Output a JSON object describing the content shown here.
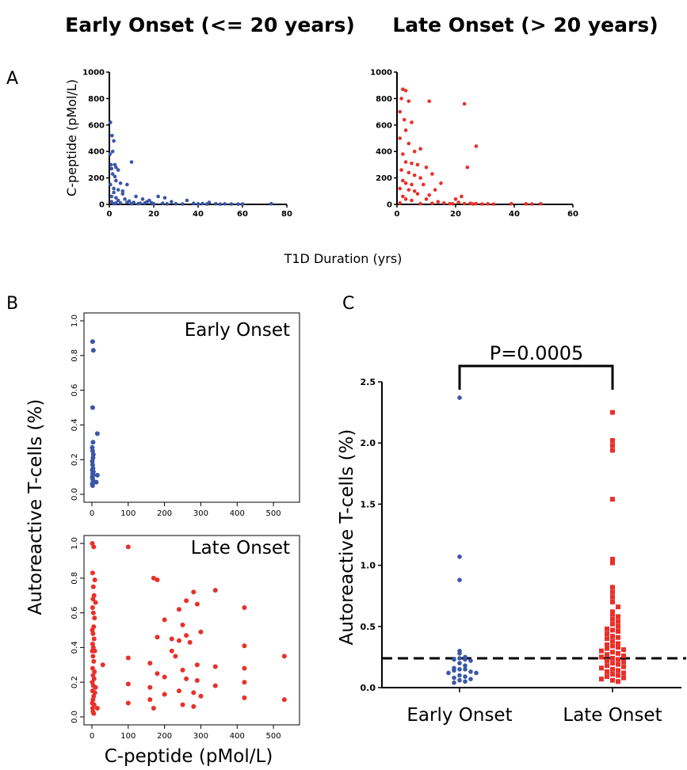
{
  "headers": {
    "early": "Early Onset (<= 20 years)",
    "late": "Late Onset (> 20 years)"
  },
  "panel_labels": {
    "a": "A",
    "b": "B",
    "c": "C"
  },
  "colors": {
    "early": "#3a57a7",
    "late": "#e8302a"
  },
  "chart_data": [
    {
      "id": "A-early",
      "type": "scatter",
      "ylabel": "C-peptide (pMol/L)",
      "xlabel": "T1D Duration (yrs)",
      "xlim": [
        0,
        80
      ],
      "ylim": [
        0,
        1000
      ],
      "xticks": [
        0,
        20,
        40,
        60,
        80
      ],
      "yticks": [
        0,
        200,
        400,
        600,
        800,
        1000
      ],
      "xtick_labels": [
        "0",
        "20",
        "40",
        "60",
        "80"
      ],
      "ytick_labels": [
        "0",
        "200",
        "400",
        "600",
        "800",
        "1000"
      ],
      "points": [
        [
          0.5,
          620
        ],
        [
          1.2,
          520
        ],
        [
          2,
          480
        ],
        [
          1.5,
          400
        ],
        [
          0.3,
          380
        ],
        [
          0.8,
          300
        ],
        [
          2.5,
          300
        ],
        [
          3,
          280
        ],
        [
          1,
          270
        ],
        [
          4,
          260
        ],
        [
          10,
          320
        ],
        [
          1.5,
          230
        ],
        [
          2.5,
          210
        ],
        [
          3,
          180
        ],
        [
          5,
          160
        ],
        [
          0.5,
          150
        ],
        [
          8,
          150
        ],
        [
          2,
          120
        ],
        [
          4,
          110
        ],
        [
          6,
          80
        ],
        [
          1,
          60
        ],
        [
          3,
          50
        ],
        [
          12,
          60
        ],
        [
          15,
          40
        ],
        [
          25,
          50
        ],
        [
          18,
          30
        ],
        [
          22,
          60
        ],
        [
          35,
          30
        ],
        [
          28,
          20
        ],
        [
          45,
          15
        ],
        [
          5,
          10
        ],
        [
          8,
          15
        ],
        [
          10,
          5
        ],
        [
          14,
          8
        ],
        [
          16,
          10
        ],
        [
          19,
          12
        ],
        [
          20,
          5
        ],
        [
          24,
          8
        ],
        [
          26,
          4
        ],
        [
          30,
          5
        ],
        [
          33,
          3
        ],
        [
          38,
          8
        ],
        [
          40,
          4
        ],
        [
          42,
          6
        ],
        [
          44,
          3
        ],
        [
          48,
          5
        ],
        [
          50,
          2
        ],
        [
          52,
          4
        ],
        [
          55,
          3
        ],
        [
          58,
          2
        ],
        [
          60,
          3
        ],
        [
          73,
          5
        ],
        [
          2,
          90
        ],
        [
          6,
          100
        ],
        [
          7,
          40
        ],
        [
          1,
          20
        ],
        [
          2,
          5
        ],
        [
          3,
          10
        ],
        [
          4,
          30
        ],
        [
          9,
          25
        ],
        [
          11,
          15
        ],
        [
          13,
          5
        ],
        [
          17,
          20
        ]
      ]
    },
    {
      "id": "A-late",
      "type": "scatter",
      "xlim": [
        0,
        60
      ],
      "ylim": [
        0,
        1000
      ],
      "xticks": [
        0,
        20,
        40,
        60
      ],
      "yticks": [
        0,
        200,
        400,
        600,
        800,
        1000
      ],
      "xtick_labels": [
        "0",
        "20",
        "40",
        "60"
      ],
      "ytick_labels": [
        "0",
        "200",
        "400",
        "600",
        "800",
        "1000"
      ],
      "points": [
        [
          2,
          870
        ],
        [
          3,
          860
        ],
        [
          1.5,
          800
        ],
        [
          4,
          780
        ],
        [
          11,
          780
        ],
        [
          23,
          760
        ],
        [
          1,
          700
        ],
        [
          2.5,
          640
        ],
        [
          5,
          620
        ],
        [
          3,
          560
        ],
        [
          1,
          500
        ],
        [
          4,
          460
        ],
        [
          8,
          420
        ],
        [
          6,
          400
        ],
        [
          27,
          440
        ],
        [
          2,
          380
        ],
        [
          3,
          320
        ],
        [
          5,
          310
        ],
        [
          7,
          300
        ],
        [
          10,
          280
        ],
        [
          24,
          280
        ],
        [
          1.5,
          260
        ],
        [
          4,
          240
        ],
        [
          6,
          220
        ],
        [
          8,
          200
        ],
        [
          12,
          230
        ],
        [
          2,
          180
        ],
        [
          3,
          160
        ],
        [
          5,
          150
        ],
        [
          9,
          150
        ],
        [
          15,
          160
        ],
        [
          1,
          120
        ],
        [
          4,
          110
        ],
        [
          6,
          100
        ],
        [
          13,
          110
        ],
        [
          7,
          80
        ],
        [
          11,
          70
        ],
        [
          2,
          60
        ],
        [
          20,
          40
        ],
        [
          22,
          60
        ],
        [
          3,
          40
        ],
        [
          5,
          30
        ],
        [
          10,
          40
        ],
        [
          14,
          20
        ],
        [
          16,
          10
        ],
        [
          18,
          5
        ],
        [
          21,
          15
        ],
        [
          25,
          8
        ],
        [
          27,
          5
        ],
        [
          29,
          3
        ],
        [
          31,
          4
        ],
        [
          33,
          2
        ],
        [
          39,
          5
        ],
        [
          44,
          4
        ],
        [
          46,
          3
        ],
        [
          49,
          5
        ],
        [
          1,
          10
        ],
        [
          8,
          5
        ],
        [
          12,
          8
        ],
        [
          19,
          4
        ],
        [
          23,
          6
        ],
        [
          26,
          3
        ]
      ]
    },
    {
      "id": "B-early",
      "type": "scatter",
      "inset_label": "Early Onset",
      "xlim": [
        0,
        550
      ],
      "ylim": [
        0,
        1
      ],
      "xticks": [
        0,
        100,
        200,
        300,
        400,
        500
      ],
      "yticks": [
        0,
        0.2,
        0.4,
        0.6,
        0.8,
        1
      ],
      "xtick_labels": [
        "0",
        "100",
        "200",
        "300",
        "400",
        "500"
      ],
      "ytick_labels": [
        "0.0",
        "0.2",
        "0.4",
        "0.6",
        "0.8",
        "1.0"
      ],
      "points": [
        [
          2,
          0.88
        ],
        [
          4,
          0.83
        ],
        [
          2,
          0.5
        ],
        [
          15,
          0.35
        ],
        [
          3,
          0.3
        ],
        [
          1,
          0.27
        ],
        [
          2,
          0.25
        ],
        [
          4,
          0.23
        ],
        [
          3,
          0.21
        ],
        [
          1,
          0.19
        ],
        [
          2,
          0.17
        ],
        [
          3,
          0.15
        ],
        [
          1,
          0.14
        ],
        [
          4,
          0.13
        ],
        [
          2,
          0.12
        ],
        [
          3,
          0.11
        ],
        [
          1,
          0.1
        ],
        [
          15,
          0.11
        ],
        [
          2,
          0.09
        ],
        [
          3,
          0.08
        ],
        [
          12,
          0.07
        ],
        [
          1,
          0.06
        ],
        [
          2,
          0.05
        ]
      ]
    },
    {
      "id": "B-late",
      "type": "scatter",
      "inset_label": "Late Onset",
      "xlabel": "C-peptide (pMol/L)",
      "ylabel": "Autoreactive T-cells (%)",
      "xlim": [
        0,
        550
      ],
      "ylim": [
        0,
        1
      ],
      "xticks": [
        0,
        100,
        200,
        300,
        400,
        500
      ],
      "yticks": [
        0,
        0.2,
        0.4,
        0.6,
        0.8,
        1
      ],
      "xtick_labels": [
        "0",
        "100",
        "200",
        "300",
        "400",
        "500"
      ],
      "ytick_labels": [
        "0.0",
        "0.2",
        "0.4",
        "0.6",
        "0.8",
        "1.0"
      ],
      "points": [
        [
          1,
          1.0
        ],
        [
          5,
          0.98
        ],
        [
          100,
          0.98
        ],
        [
          2,
          0.83
        ],
        [
          8,
          0.79
        ],
        [
          170,
          0.8
        ],
        [
          180,
          0.79
        ],
        [
          4,
          0.75
        ],
        [
          6,
          0.7
        ],
        [
          280,
          0.72
        ],
        [
          340,
          0.73
        ],
        [
          3,
          0.68
        ],
        [
          10,
          0.66
        ],
        [
          260,
          0.67
        ],
        [
          290,
          0.65
        ],
        [
          2,
          0.63
        ],
        [
          240,
          0.62
        ],
        [
          420,
          0.63
        ],
        [
          4,
          0.6
        ],
        [
          7,
          0.57
        ],
        [
          200,
          0.56
        ],
        [
          5,
          0.52
        ],
        [
          250,
          0.53
        ],
        [
          1,
          0.5
        ],
        [
          3,
          0.48
        ],
        [
          260,
          0.47
        ],
        [
          300,
          0.49
        ],
        [
          180,
          0.46
        ],
        [
          6,
          0.45
        ],
        [
          220,
          0.45
        ],
        [
          240,
          0.44
        ],
        [
          2,
          0.42
        ],
        [
          270,
          0.43
        ],
        [
          420,
          0.41
        ],
        [
          4,
          0.4
        ],
        [
          1,
          0.38
        ],
        [
          8,
          0.38
        ],
        [
          220,
          0.38
        ],
        [
          3,
          0.35
        ],
        [
          100,
          0.34
        ],
        [
          230,
          0.35
        ],
        [
          530,
          0.35
        ],
        [
          5,
          0.32
        ],
        [
          30,
          0.3
        ],
        [
          160,
          0.31
        ],
        [
          290,
          0.3
        ],
        [
          340,
          0.29
        ],
        [
          2,
          0.28
        ],
        [
          7,
          0.26
        ],
        [
          250,
          0.27
        ],
        [
          180,
          0.25
        ],
        [
          420,
          0.28
        ],
        [
          3,
          0.24
        ],
        [
          6,
          0.22
        ],
        [
          200,
          0.23
        ],
        [
          260,
          0.22
        ],
        [
          290,
          0.21
        ],
        [
          1,
          0.2
        ],
        [
          4,
          0.18
        ],
        [
          10,
          0.17
        ],
        [
          100,
          0.19
        ],
        [
          160,
          0.17
        ],
        [
          340,
          0.18
        ],
        [
          420,
          0.2
        ],
        [
          2,
          0.15
        ],
        [
          8,
          0.14
        ],
        [
          240,
          0.15
        ],
        [
          280,
          0.14
        ],
        [
          5,
          0.12
        ],
        [
          200,
          0.13
        ],
        [
          300,
          0.12
        ],
        [
          3,
          0.1
        ],
        [
          160,
          0.1
        ],
        [
          420,
          0.11
        ],
        [
          530,
          0.1
        ],
        [
          1,
          0.08
        ],
        [
          6,
          0.07
        ],
        [
          100,
          0.08
        ],
        [
          250,
          0.07
        ],
        [
          2,
          0.05
        ],
        [
          15,
          0.05
        ],
        [
          280,
          0.06
        ],
        [
          170,
          0.05
        ],
        [
          3,
          0.03
        ],
        [
          5,
          0.02
        ]
      ]
    },
    {
      "id": "C",
      "type": "scatter",
      "ylabel": "Autoreactive T-cells (%)",
      "categories": [
        "Early Onset",
        "Late Onset"
      ],
      "ylim": [
        0,
        2.5
      ],
      "yticks": [
        0,
        0.5,
        1.0,
        1.5,
        2.0,
        2.5
      ],
      "ytick_labels": [
        "0.0",
        "0.5",
        "1.0",
        "1.5",
        "2.0",
        "2.5"
      ],
      "threshold": 0.24,
      "p_value": "P=0.0005",
      "series": [
        {
          "category": "Early Onset",
          "marker": "circle",
          "values": [
            2.37,
            1.07,
            0.88,
            0.3,
            0.28,
            0.25,
            0.24,
            0.23,
            0.23,
            0.22,
            0.2,
            0.18,
            0.16,
            0.15,
            0.15,
            0.14,
            0.13,
            0.12,
            0.12,
            0.1,
            0.09,
            0.08,
            0.07,
            0.06,
            0.05,
            0.04
          ]
        },
        {
          "category": "Late Onset",
          "marker": "square",
          "values": [
            2.25,
            2.02,
            1.98,
            1.94,
            1.54,
            1.05,
            1.02,
            0.82,
            0.78,
            0.74,
            0.7,
            0.66,
            0.62,
            0.6,
            0.58,
            0.56,
            0.54,
            0.52,
            0.5,
            0.48,
            0.47,
            0.46,
            0.44,
            0.42,
            0.41,
            0.4,
            0.38,
            0.36,
            0.35,
            0.34,
            0.33,
            0.32,
            0.31,
            0.3,
            0.29,
            0.28,
            0.27,
            0.26,
            0.25,
            0.24,
            0.23,
            0.22,
            0.21,
            0.2,
            0.19,
            0.18,
            0.17,
            0.16,
            0.15,
            0.14,
            0.13,
            0.12,
            0.11,
            0.1,
            0.09,
            0.08,
            0.07,
            0.06,
            0.05
          ]
        }
      ]
    }
  ]
}
